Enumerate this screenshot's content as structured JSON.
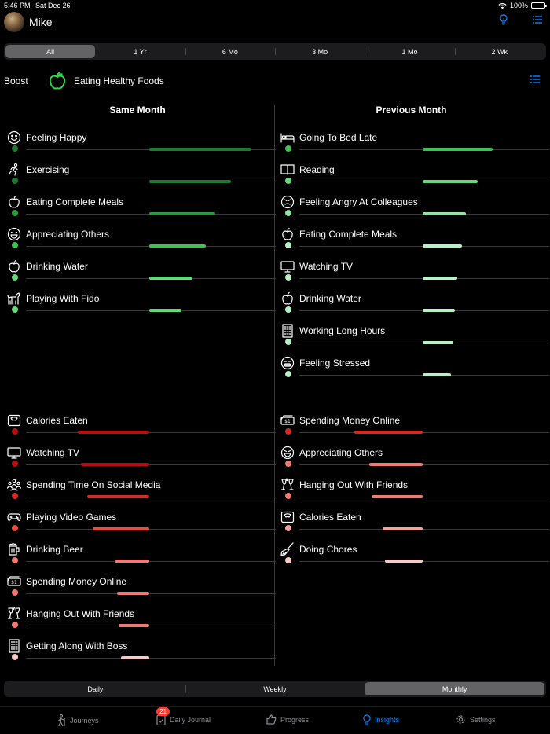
{
  "status": {
    "time": "5:46 PM",
    "date": "Sat Dec 26",
    "battery": "100%"
  },
  "profile": {
    "name": "Mike"
  },
  "icons": {
    "help": "question-bulb-icon",
    "menu": "hamburger-menu-icon",
    "wifi": "wifi-icon"
  },
  "range_tabs": [
    "All",
    "1 Yr",
    "6 Mo",
    "3 Mo",
    "1 Mo",
    "2 Wk"
  ],
  "range_active": 0,
  "boost": {
    "label": "Boost",
    "activity": "Eating Healthy Foods",
    "icon": "apple-icon",
    "accent": "#32d74b"
  },
  "columns": {
    "left": "Same Month",
    "right": "Previous Month"
  },
  "colors": {
    "positive": [
      "#1e7a33",
      "#2a9a40",
      "#3ec055",
      "#62d97a",
      "#8fe6a3",
      "#b8f0c6"
    ],
    "negative": [
      "#b3110d",
      "#d42a22",
      "#ea4a40",
      "#f07a72",
      "#f4a39d",
      "#f8c9c5"
    ]
  },
  "same_month_positive": [
    {
      "label": "Feeling Happy",
      "icon": "smiley-icon",
      "value": 0.76,
      "shade": 0
    },
    {
      "label": "Exercising",
      "icon": "running-person-icon",
      "value": 0.61,
      "shade": 0
    },
    {
      "label": "Eating Complete Meals",
      "icon": "apple-icon",
      "value": 0.49,
      "shade": 1
    },
    {
      "label": "Appreciating Others",
      "icon": "grin-icon",
      "value": 0.42,
      "shade": 2
    },
    {
      "label": "Drinking Water",
      "icon": "apple-icon",
      "value": 0.32,
      "shade": 3
    },
    {
      "label": "Playing With Fido",
      "icon": "dog-icon",
      "value": 0.24,
      "shade": 3
    }
  ],
  "previous_month_positive": [
    {
      "label": "Going To Bed Late",
      "icon": "bed-icon",
      "value": 0.52,
      "shade": 2
    },
    {
      "label": "Reading",
      "icon": "book-icon",
      "value": 0.41,
      "shade": 3
    },
    {
      "label": "Feeling Angry At Colleagues",
      "icon": "angry-face-icon",
      "value": 0.32,
      "shade": 4
    },
    {
      "label": "Eating Complete Meals",
      "icon": "apple-icon",
      "value": 0.29,
      "shade": 5
    },
    {
      "label": "Watching TV",
      "icon": "tv-icon",
      "value": 0.26,
      "shade": 5
    },
    {
      "label": "Drinking Water",
      "icon": "apple-icon",
      "value": 0.24,
      "shade": 5
    },
    {
      "label": "Working Long Hours",
      "icon": "building-icon",
      "value": 0.23,
      "shade": 5
    },
    {
      "label": "Feeling Stressed",
      "icon": "stressed-face-icon",
      "value": 0.21,
      "shade": 5
    }
  ],
  "same_month_negative": [
    {
      "label": "Calories Eaten",
      "icon": "scale-icon",
      "value": 0.53,
      "shade": 0
    },
    {
      "label": "Watching TV",
      "icon": "tv-icon",
      "value": 0.51,
      "shade": 0
    },
    {
      "label": "Spending Time On Social Media",
      "icon": "people-network-icon",
      "value": 0.46,
      "shade": 1
    },
    {
      "label": "Playing Video Games",
      "icon": "gamepad-icon",
      "value": 0.42,
      "shade": 2
    },
    {
      "label": "Drinking Beer",
      "icon": "beer-mug-icon",
      "value": 0.26,
      "shade": 3
    },
    {
      "label": "Spending Money Online",
      "icon": "money-icon",
      "value": 0.24,
      "shade": 3
    },
    {
      "label": "Hanging Out With Friends",
      "icon": "cheers-icon",
      "value": 0.23,
      "shade": 3
    },
    {
      "label": "Getting Along With Boss",
      "icon": "building-icon",
      "value": 0.21,
      "shade": 5
    }
  ],
  "previous_month_negative": [
    {
      "label": "Spending Money Online",
      "icon": "money-icon",
      "value": 0.51,
      "shade": 1
    },
    {
      "label": "Appreciating Others",
      "icon": "grin-icon",
      "value": 0.4,
      "shade": 3
    },
    {
      "label": "Hanging Out With Friends",
      "icon": "cheers-icon",
      "value": 0.38,
      "shade": 3
    },
    {
      "label": "Calories Eaten",
      "icon": "scale-icon",
      "value": 0.3,
      "shade": 4
    },
    {
      "label": "Doing Chores",
      "icon": "broom-icon",
      "value": 0.28,
      "shade": 5
    }
  ],
  "period_tabs": [
    "Daily",
    "Weekly",
    "Monthly"
  ],
  "period_active": 2,
  "tabs": [
    {
      "label": "Journeys",
      "icon": "hiker-icon"
    },
    {
      "label": "Daily Journal",
      "icon": "journal-check-icon",
      "badge": "21"
    },
    {
      "label": "Progress",
      "icon": "thumbs-up-icon"
    },
    {
      "label": "Insights",
      "icon": "lightbulb-icon",
      "active": true
    },
    {
      "label": "Settings",
      "icon": "gear-icon"
    }
  ]
}
